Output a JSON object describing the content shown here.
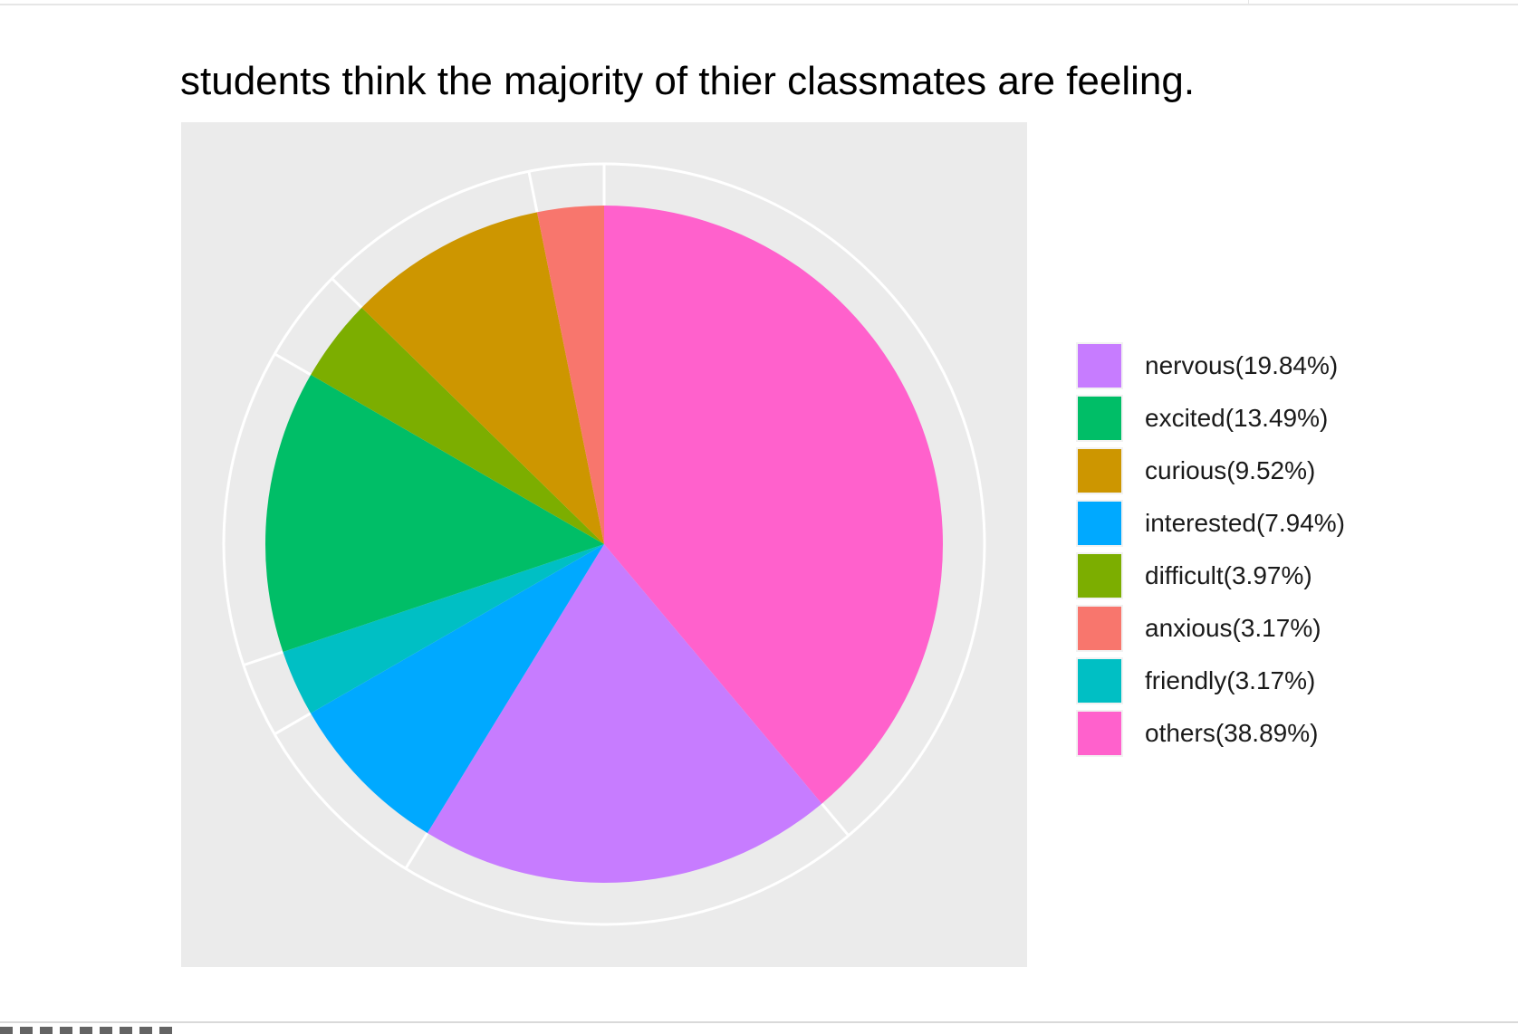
{
  "chart_data": {
    "type": "pie",
    "title": "students think the majority of thier classmates are feeling.",
    "slices": [
      {
        "label": "nervous(19.84%)",
        "value": 19.84,
        "color": "#C77CFF"
      },
      {
        "label": "excited(13.49%)",
        "value": 13.49,
        "color": "#00BE67"
      },
      {
        "label": "curious(9.52%)",
        "value": 9.52,
        "color": "#CD9600"
      },
      {
        "label": "interested(7.94%)",
        "value": 7.94,
        "color": "#00A9FF"
      },
      {
        "label": "difficult(3.97%)",
        "value": 3.97,
        "color": "#7CAE00"
      },
      {
        "label": "anxious(3.17%)",
        "value": 3.17,
        "color": "#F8766D"
      },
      {
        "label": "friendly(3.17%)",
        "value": 3.17,
        "color": "#00BFC4"
      },
      {
        "label": "others(38.89%)",
        "value": 38.89,
        "color": "#FF61CC"
      }
    ],
    "draw_order_clockwise_from_top": [
      "others(38.89%)",
      "nervous(19.84%)",
      "interested(7.94%)",
      "friendly(3.17%)",
      "excited(13.49%)",
      "difficult(3.97%)",
      "curious(9.52%)",
      "anxious(3.17%)"
    ],
    "legend_position": "right",
    "background": "#EBEBEB",
    "grid": true
  }
}
